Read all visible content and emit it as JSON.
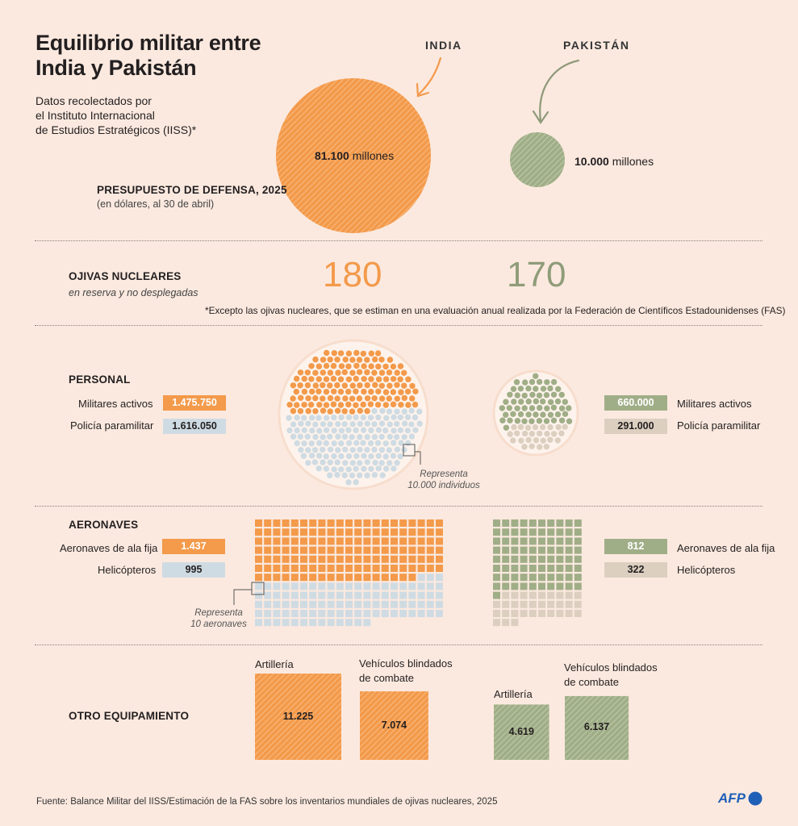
{
  "title_line1": "Equilibrio militar entre",
  "title_line2": "India y Pakistán",
  "subtitle_line1": "Datos recolectados por",
  "subtitle_line2": "el Instituto Internacional",
  "subtitle_line3": "de Estudios Estratégicos (IISS)*",
  "colors": {
    "india": "#f39a4b",
    "india_light": "#cfdbe3",
    "pakistan": "#a0ae87",
    "pakistan_light": "#dccfc0",
    "background": "#fbe9df"
  },
  "countries": {
    "india": "INDIA",
    "pakistan": "PAKISTÁN"
  },
  "budget": {
    "label": "PRESUPUESTO DE DEFENSA, 2025",
    "sublabel": "(en dólares, al 30 de abril)",
    "india_value": "81.100",
    "india_unit": "millones",
    "pakistan_value": "10.000",
    "pakistan_unit": "millones"
  },
  "nuclear": {
    "label": "OJIVAS NUCLEARES",
    "sublabel": "en reserva y no desplegadas",
    "india": "180",
    "pakistan": "170",
    "footnote": "*Excepto las ojivas nucleares, que se estiman en una evaluación anual realizada por la Federación de Científicos Estadounidenses (FAS)"
  },
  "personnel": {
    "label": "PERSONAL",
    "active_label": "Militares activos",
    "para_label": "Policía paramilitar",
    "india_active": "1.475.750",
    "india_para": "1.616.050",
    "pakistan_active": "660.000",
    "pakistan_para": "291.000",
    "note_line1": "Representa",
    "note_line2": "10.000 individuos"
  },
  "aircraft": {
    "label": "AERONAVES",
    "fixed_label": "Aeronaves de ala fija",
    "heli_label": "Helicópteros",
    "india_fixed": "1.437",
    "india_heli": "995",
    "pakistan_fixed": "812",
    "pakistan_heli": "322",
    "note_line1": "Representa",
    "note_line2": "10 aeronaves"
  },
  "equipment": {
    "label": "OTRO EQUIPAMIENTO",
    "artillery_label": "Artillería",
    "armored_label_line1": "Vehículos blindados",
    "armored_label_line2": "de combate",
    "india_artillery": "11.225",
    "india_armored": "7.074",
    "pakistan_artillery": "4.619",
    "pakistan_armored": "6.137"
  },
  "source": "Fuente: Balance Militar del IISS/Estimación de la FAS sobre los inventarios mundiales de ojivas nucleares, 2025",
  "logo": "AFP",
  "chart_data": [
    {
      "type": "bubble",
      "title": "PRESUPUESTO DE DEFENSA, 2025",
      "unit": "millones de dólares",
      "categories": [
        "INDIA",
        "PAKISTÁN"
      ],
      "values": [
        81100,
        10000
      ]
    },
    {
      "type": "table",
      "title": "OJIVAS NUCLEARES",
      "categories": [
        "INDIA",
        "PAKISTÁN"
      ],
      "values": [
        180,
        170
      ]
    },
    {
      "type": "dot",
      "title": "PERSONAL",
      "categories": [
        "INDIA",
        "PAKISTÁN"
      ],
      "series": [
        {
          "name": "Militares activos",
          "values": [
            1475750,
            660000
          ]
        },
        {
          "name": "Policía paramilitar",
          "values": [
            1616050,
            291000
          ]
        }
      ]
    },
    {
      "type": "waffle",
      "title": "AERONAVES",
      "categories": [
        "INDIA",
        "PAKISTÁN"
      ],
      "series": [
        {
          "name": "Aeronaves de ala fija",
          "values": [
            1437,
            812
          ]
        },
        {
          "name": "Helicópteros",
          "values": [
            995,
            322
          ]
        }
      ]
    },
    {
      "type": "bar",
      "title": "OTRO EQUIPAMIENTO",
      "categories": [
        "INDIA",
        "PAKISTÁN"
      ],
      "series": [
        {
          "name": "Artillería",
          "values": [
            11225,
            4619
          ]
        },
        {
          "name": "Vehículos blindados de combate",
          "values": [
            7074,
            6137
          ]
        }
      ]
    }
  ]
}
